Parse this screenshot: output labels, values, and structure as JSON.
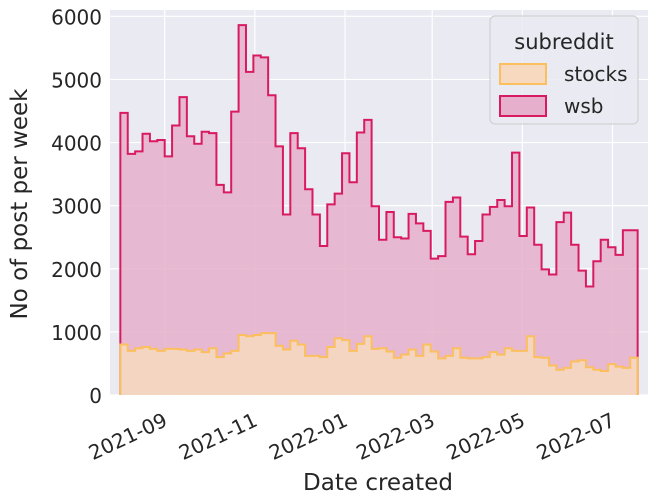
{
  "chart_data": {
    "type": "area",
    "title": "",
    "xlabel": "Date created",
    "ylabel": "No of post per week",
    "ylim": [
      0,
      6100
    ],
    "xlim": [
      "2021-07-26",
      "2022-07-25"
    ],
    "yticks": [
      0,
      1000,
      2000,
      3000,
      4000,
      5000,
      6000
    ],
    "xticks": [
      {
        "date": "2021-09-01",
        "label": "2021-09"
      },
      {
        "date": "2021-11-01",
        "label": "2021-11"
      },
      {
        "date": "2022-01-01",
        "label": "2022-01"
      },
      {
        "date": "2022-03-01",
        "label": "2022-03"
      },
      {
        "date": "2022-05-01",
        "label": "2022-05"
      },
      {
        "date": "2022-07-01",
        "label": "2022-07"
      }
    ],
    "grid": true,
    "legend": {
      "title": "subreddit",
      "placement": "top-right"
    },
    "bins": {
      "start": "2021-08-02",
      "end": "2022-07-18"
    },
    "series": [
      {
        "name": "stocks",
        "color": "#fbbf5d",
        "fill": "#f6d9bf",
        "values": [
          800,
          700,
          740,
          760,
          730,
          700,
          730,
          730,
          720,
          700,
          720,
          680,
          740,
          600,
          660,
          700,
          950,
          930,
          950,
          980,
          980,
          780,
          720,
          860,
          800,
          620,
          620,
          600,
          760,
          900,
          870,
          700,
          810,
          930,
          730,
          740,
          690,
          590,
          640,
          720,
          620,
          800,
          690,
          580,
          620,
          740,
          590,
          580,
          580,
          600,
          680,
          640,
          740,
          700,
          700,
          930,
          600,
          590,
          470,
          400,
          430,
          530,
          550,
          440,
          400,
          380,
          490,
          450,
          430,
          590
        ]
      },
      {
        "name": "wsb",
        "color": "#d81b60",
        "fill": "#e6afcb",
        "values": [
          4470,
          3820,
          3860,
          4140,
          4020,
          4040,
          3780,
          4270,
          4720,
          4100,
          3980,
          4170,
          4150,
          3330,
          3210,
          4490,
          5860,
          5120,
          5380,
          5350,
          4750,
          3940,
          2860,
          4150,
          3910,
          3260,
          2860,
          2360,
          3020,
          3190,
          3830,
          3370,
          4160,
          4360,
          2990,
          2460,
          2900,
          2500,
          2480,
          2870,
          2720,
          2600,
          2160,
          2200,
          3060,
          3130,
          2510,
          2230,
          2440,
          2860,
          2980,
          3090,
          2990,
          3840,
          2520,
          2970,
          2380,
          1990,
          1910,
          2740,
          2890,
          2380,
          1970,
          1720,
          2120,
          2460,
          2340,
          2220,
          2610,
          2610
        ]
      }
    ]
  }
}
